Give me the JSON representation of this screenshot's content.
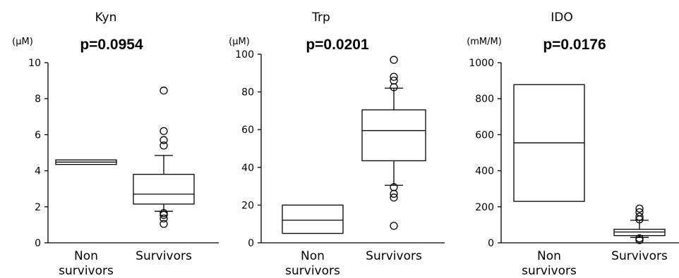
{
  "chart_data": [
    {
      "type": "box",
      "title": "Kyn",
      "unit": "(μM)",
      "p_value": "p=0.0954",
      "ylim": [
        0,
        10
      ],
      "yticks": [
        0,
        2,
        4,
        6,
        8,
        10
      ],
      "categories": [
        [
          "Non",
          "survivors"
        ],
        [
          "Survivors"
        ]
      ],
      "boxes": [
        {
          "group": "Non survivors",
          "q1": 4.35,
          "median": 4.48,
          "q3": 4.6,
          "whisker_low": null,
          "whisker_high": null,
          "outliers": []
        },
        {
          "group": "Survivors",
          "q1": 2.15,
          "median": 2.7,
          "q3": 3.8,
          "whisker_low": 1.75,
          "whisker_high": 4.85,
          "outliers": [
            1.05,
            1.35,
            1.55,
            1.65,
            5.4,
            5.7,
            6.2,
            8.45
          ]
        }
      ]
    },
    {
      "type": "box",
      "title": "Trp",
      "unit": "(μM)",
      "p_value": "p=0.0201",
      "ylim": [
        0,
        100
      ],
      "yticks": [
        0,
        20,
        40,
        60,
        80,
        100
      ],
      "categories": [
        [
          "Non",
          "survivors"
        ],
        [
          "Survivors"
        ]
      ],
      "boxes": [
        {
          "group": "Non survivors",
          "q1": 5,
          "median": 12,
          "q3": 20,
          "whisker_low": null,
          "whisker_high": null,
          "outliers": []
        },
        {
          "group": "Survivors",
          "q1": 43.5,
          "median": 59.5,
          "q3": 70.5,
          "whisker_low": 30.5,
          "whisker_high": 82,
          "outliers": [
            9,
            24,
            26,
            29.5,
            82.5,
            86,
            88,
            97
          ]
        }
      ]
    },
    {
      "type": "box",
      "title": "IDO",
      "unit": "(mM/M)",
      "p_value": "p=0.0176",
      "ylim": [
        0,
        1000
      ],
      "yticks": [
        0,
        200,
        400,
        600,
        800,
        1000
      ],
      "categories": [
        [
          "Non",
          "survivors"
        ],
        [
          "Survivors"
        ]
      ],
      "boxes": [
        {
          "group": "Non survivors",
          "q1": 230,
          "median": 555,
          "q3": 878,
          "whisker_low": null,
          "whisker_high": null,
          "outliers": []
        },
        {
          "group": "Survivors",
          "q1": 40,
          "median": 60,
          "q3": 75,
          "whisker_low": 30,
          "whisker_high": 125,
          "outliers": [
            15,
            25,
            130,
            145,
            170,
            190
          ]
        }
      ]
    }
  ]
}
